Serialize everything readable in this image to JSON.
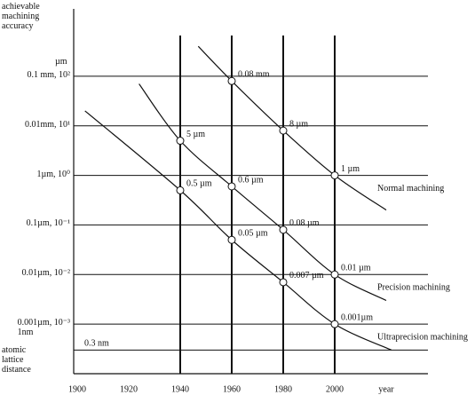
{
  "chart_data": {
    "type": "line",
    "y_label": "achievable machining accuracy",
    "y_unit": "µm",
    "x_label": "year",
    "log_y": true,
    "xlim": [
      1900,
      2040
    ],
    "xticks": [
      1900,
      1920,
      1940,
      1960,
      1980,
      2000
    ],
    "xgrid": [
      1940,
      1960,
      1980,
      2000
    ],
    "ylim": [
      0.0001,
      1000
    ],
    "yticks": [
      {
        "value": 100,
        "label": "0.1 mm, 10²"
      },
      {
        "value": 10,
        "label": "0.01mm, 10¹"
      },
      {
        "value": 1,
        "label": "1µm, 10⁰"
      },
      {
        "value": 0.1,
        "label": "0.1µm, 10⁻¹"
      },
      {
        "value": 0.01,
        "label": "0.01µm, 10⁻²"
      },
      {
        "value": 0.001,
        "label": "0.001µm, 10⁻³\n1nm"
      },
      {
        "value": 0.0003,
        "label": "atomic lattice distance"
      }
    ],
    "annotations": [
      "0.3 nm"
    ],
    "series": [
      {
        "name": "Normal machining",
        "color": "#111111",
        "x": [
          1947,
          1960,
          1980,
          2000,
          2020
        ],
        "values": [
          400,
          80,
          8,
          1,
          0.2
        ],
        "value_labels": [
          null,
          "0.08 mm",
          "8 µm",
          "1 µm",
          null
        ]
      },
      {
        "name": "Precision machining",
        "color": "#111111",
        "x": [
          1924,
          1940,
          1960,
          1980,
          2000,
          2020
        ],
        "values": [
          70,
          5,
          0.6,
          0.08,
          0.01,
          0.003
        ],
        "value_labels": [
          null,
          "5 µm",
          "0.6 µm",
          "0.08 µm",
          "0.01 µm",
          null
        ]
      },
      {
        "name": "Ultraprecision machining",
        "color": "#111111",
        "x": [
          1903,
          1940,
          1960,
          1980,
          2000,
          2022
        ],
        "values": [
          20,
          0.5,
          0.05,
          0.007,
          0.001,
          0.0003
        ],
        "value_labels": [
          null,
          "0.5 µm",
          "0.05 µm",
          "0.007 µm",
          "0.001µm",
          null
        ]
      }
    ]
  }
}
